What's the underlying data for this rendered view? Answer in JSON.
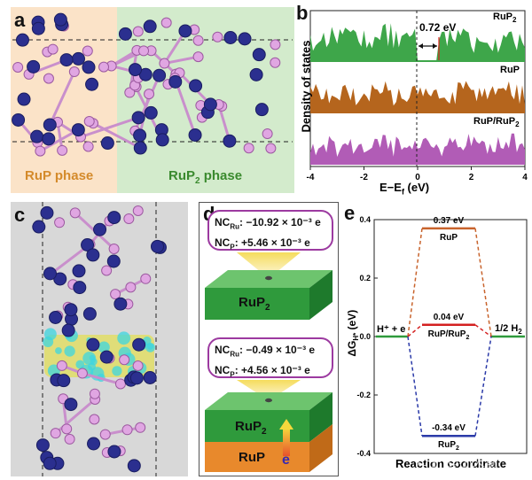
{
  "panels": {
    "a": {
      "letter": "a",
      "left_label": "RuP phase",
      "right_label_main": "RuP",
      "right_label_sub": "2",
      "right_label_tail": " phase"
    },
    "b": {
      "letter": "b",
      "ylabel": "Density of states",
      "xlabel": "E−E",
      "xlabel_sub": "f",
      "xlabel_unit": " (eV)",
      "gap_label": "0.72 eV",
      "curve1_main": "RuP",
      "curve1_sub": "2",
      "curve2": "RuP",
      "curve3_main": "RuP/RuP",
      "curve3_sub": "2",
      "colors": {
        "rup2": "#3ea64a",
        "rup": "#b5651d",
        "rupr": "#b15cb6"
      }
    },
    "c": {
      "letter": "c"
    },
    "d": {
      "letter": "d",
      "top_ru_label": "NC",
      "top_ru_sub": "Ru",
      "top_ru_val": ": −10.92 × 10⁻³ e",
      "top_p_label": "NC",
      "top_p_sub": "P",
      "top_p_val": ": +5.46 × 10⁻³ e",
      "top_block_main": "RuP",
      "top_block_sub": "2",
      "bot_ru_label": "NC",
      "bot_ru_sub": "Ru",
      "bot_ru_val": ": −0.49 × 10⁻³ e",
      "bot_p_label": "NC",
      "bot_p_sub": "P",
      "bot_p_val": ": +4.56 × 10⁻³ e",
      "bot_upper_main": "RuP",
      "bot_upper_sub": "2",
      "bot_lower": "RuP",
      "electron": "e"
    },
    "e": {
      "letter": "e",
      "ylabel_main": "ΔG",
      "ylabel_sub": "H*",
      "ylabel_unit": " (eV)",
      "xlabel": "Reaction coordinate",
      "left_state": "H⁺ + e",
      "right_state_main": "1/2 H",
      "right_state_sub": "2",
      "watermark": "知乎 @小火箭"
    }
  },
  "chart_data": {
    "type": "line",
    "title": "",
    "xlabel": "Reaction coordinate",
    "ylabel": "ΔGH* (eV)",
    "ylim": [
      -0.4,
      0.4
    ],
    "yticks": [
      -0.4,
      -0.2,
      0.0,
      0.2,
      0.4
    ],
    "ytick_labels": [
      "-0.4",
      "-0.2",
      "0.0",
      "0.2",
      "0.4"
    ],
    "series": [
      {
        "name": "RuP",
        "value": 0.37,
        "value_label": "0.37 eV",
        "color": "#c8632c"
      },
      {
        "name": "RuP/RuP2",
        "value": 0.04,
        "value_label": "0.04 eV",
        "color": "#d42020"
      },
      {
        "name": "RuP2",
        "value": -0.34,
        "value_label": "-0.34 eV",
        "color": "#2b3aa8"
      }
    ],
    "dos": {
      "xlim": [
        -4,
        4
      ],
      "xticks": [
        -4,
        -2,
        0,
        2,
        4
      ],
      "xtick_labels": [
        "-4",
        "-2",
        "0",
        "2",
        "4"
      ],
      "gap_ev": 0.72
    }
  }
}
